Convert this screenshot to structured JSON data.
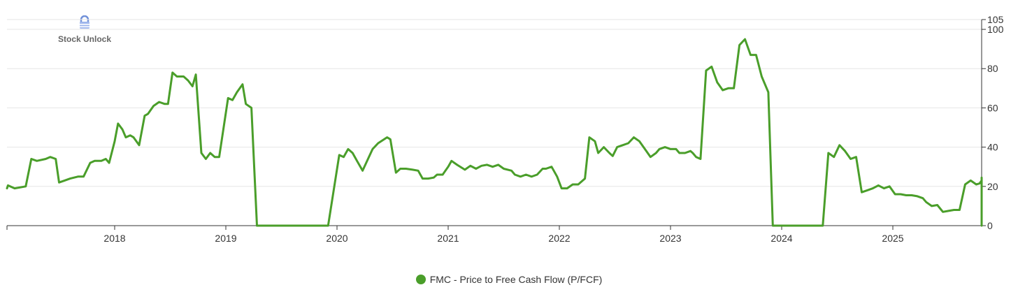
{
  "brand": {
    "name": "Stock Unlock",
    "icon": "lock-icon"
  },
  "colors": {
    "series": "#4a9e2a",
    "grid": "#e6e6e6",
    "axis": "#333333"
  },
  "chart_data": {
    "type": "line",
    "title": "",
    "xlabel": "",
    "ylabel": "",
    "x_ticks": [
      "2018",
      "2019",
      "2020",
      "2021",
      "2022",
      "2023",
      "2024",
      "2025"
    ],
    "y_ticks": [
      0,
      20,
      40,
      60,
      80,
      100,
      105
    ],
    "xlim": [
      2017.0,
      2025.82
    ],
    "ylim": [
      0,
      105
    ],
    "y_axis_side": "right",
    "grid": true,
    "legend_position": "bottom-center",
    "series": [
      {
        "name": "FMC - Price to Free Cash Flow (P/FCF)",
        "color": "#4a9e2a",
        "points": [
          [
            2017.0,
            19
          ],
          [
            2017.04,
            20.5
          ],
          [
            2017.1,
            19
          ],
          [
            2017.2,
            20
          ],
          [
            2017.25,
            34
          ],
          [
            2017.3,
            33
          ],
          [
            2017.38,
            34
          ],
          [
            2017.42,
            35
          ],
          [
            2017.47,
            34
          ],
          [
            2017.5,
            22
          ],
          [
            2017.55,
            23
          ],
          [
            2017.6,
            24
          ],
          [
            2017.67,
            25
          ],
          [
            2017.72,
            25
          ],
          [
            2017.78,
            32
          ],
          [
            2017.82,
            33
          ],
          [
            2017.88,
            33
          ],
          [
            2017.92,
            34
          ],
          [
            2017.95,
            32
          ],
          [
            2018.0,
            43
          ],
          [
            2018.03,
            52
          ],
          [
            2018.07,
            49
          ],
          [
            2018.1,
            45
          ],
          [
            2018.14,
            46
          ],
          [
            2018.17,
            45
          ],
          [
            2018.22,
            41
          ],
          [
            2018.27,
            56
          ],
          [
            2018.3,
            57
          ],
          [
            2018.35,
            61
          ],
          [
            2018.4,
            63
          ],
          [
            2018.45,
            62
          ],
          [
            2018.48,
            62
          ],
          [
            2018.52,
            78
          ],
          [
            2018.56,
            76
          ],
          [
            2018.62,
            76
          ],
          [
            2018.66,
            74
          ],
          [
            2018.7,
            71
          ],
          [
            2018.73,
            77
          ],
          [
            2018.78,
            37
          ],
          [
            2018.82,
            34
          ],
          [
            2018.86,
            37
          ],
          [
            2018.9,
            35
          ],
          [
            2018.94,
            35
          ],
          [
            2019.02,
            65
          ],
          [
            2019.06,
            64
          ],
          [
            2019.1,
            68
          ],
          [
            2019.15,
            72
          ],
          [
            2019.18,
            62
          ],
          [
            2019.23,
            60
          ],
          [
            2019.28,
            0
          ],
          [
            2019.92,
            0
          ],
          [
            2020.02,
            36
          ],
          [
            2020.06,
            35
          ],
          [
            2020.1,
            39
          ],
          [
            2020.14,
            37
          ],
          [
            2020.18,
            33
          ],
          [
            2020.23,
            28
          ],
          [
            2020.32,
            39
          ],
          [
            2020.37,
            42
          ],
          [
            2020.45,
            45
          ],
          [
            2020.48,
            44
          ],
          [
            2020.53,
            27
          ],
          [
            2020.57,
            29
          ],
          [
            2020.62,
            29
          ],
          [
            2020.68,
            28.5
          ],
          [
            2020.73,
            28
          ],
          [
            2020.77,
            24
          ],
          [
            2020.82,
            24
          ],
          [
            2020.87,
            24.5
          ],
          [
            2020.9,
            26
          ],
          [
            2020.95,
            26
          ],
          [
            2021.0,
            30
          ],
          [
            2021.03,
            33
          ],
          [
            2021.08,
            31
          ],
          [
            2021.15,
            28.5
          ],
          [
            2021.2,
            30.5
          ],
          [
            2021.25,
            29
          ],
          [
            2021.3,
            30.5
          ],
          [
            2021.35,
            31
          ],
          [
            2021.4,
            30
          ],
          [
            2021.45,
            31
          ],
          [
            2021.5,
            29
          ],
          [
            2021.57,
            28
          ],
          [
            2021.6,
            26
          ],
          [
            2021.65,
            25
          ],
          [
            2021.7,
            26
          ],
          [
            2021.75,
            25
          ],
          [
            2021.8,
            26
          ],
          [
            2021.85,
            29
          ],
          [
            2021.88,
            29
          ],
          [
            2021.93,
            30
          ],
          [
            2021.98,
            25
          ],
          [
            2022.02,
            19
          ],
          [
            2022.07,
            19
          ],
          [
            2022.12,
            21
          ],
          [
            2022.17,
            21
          ],
          [
            2022.23,
            24
          ],
          [
            2022.27,
            45
          ],
          [
            2022.32,
            43
          ],
          [
            2022.35,
            37
          ],
          [
            2022.4,
            40
          ],
          [
            2022.45,
            37
          ],
          [
            2022.48,
            35.5
          ],
          [
            2022.52,
            40
          ],
          [
            2022.57,
            41
          ],
          [
            2022.62,
            42
          ],
          [
            2022.67,
            45
          ],
          [
            2022.72,
            43
          ],
          [
            2022.77,
            39
          ],
          [
            2022.82,
            35
          ],
          [
            2022.87,
            37
          ],
          [
            2022.9,
            39
          ],
          [
            2022.95,
            40
          ],
          [
            2023.0,
            39
          ],
          [
            2023.05,
            39
          ],
          [
            2023.08,
            37
          ],
          [
            2023.13,
            37
          ],
          [
            2023.18,
            38
          ],
          [
            2023.2,
            37
          ],
          [
            2023.23,
            35
          ],
          [
            2023.27,
            34
          ],
          [
            2023.32,
            79
          ],
          [
            2023.37,
            81
          ],
          [
            2023.42,
            73
          ],
          [
            2023.47,
            69
          ],
          [
            2023.52,
            70
          ],
          [
            2023.57,
            70
          ],
          [
            2023.62,
            92
          ],
          [
            2023.67,
            95
          ],
          [
            2023.72,
            87
          ],
          [
            2023.77,
            87
          ],
          [
            2023.82,
            76
          ],
          [
            2023.88,
            68
          ],
          [
            2023.92,
            0
          ],
          [
            2024.37,
            0
          ],
          [
            2024.42,
            37
          ],
          [
            2024.47,
            35
          ],
          [
            2024.52,
            41
          ],
          [
            2024.57,
            38
          ],
          [
            2024.62,
            34
          ],
          [
            2024.67,
            35
          ],
          [
            2024.72,
            17
          ],
          [
            2024.77,
            18
          ],
          [
            2024.82,
            19
          ],
          [
            2024.87,
            20.5
          ],
          [
            2024.92,
            19
          ],
          [
            2024.97,
            20
          ],
          [
            2025.02,
            16
          ],
          [
            2025.07,
            16
          ],
          [
            2025.12,
            15.5
          ],
          [
            2025.17,
            15.5
          ],
          [
            2025.22,
            15
          ],
          [
            2025.27,
            14
          ],
          [
            2025.3,
            12
          ],
          [
            2025.35,
            10
          ],
          [
            2025.4,
            10.5
          ],
          [
            2025.45,
            7
          ],
          [
            2025.5,
            7.5
          ],
          [
            2025.55,
            8
          ],
          [
            2025.6,
            8
          ],
          [
            2025.65,
            21
          ],
          [
            2025.7,
            23
          ],
          [
            2025.75,
            21
          ],
          [
            2025.78,
            21.5
          ],
          [
            2025.8,
            23
          ],
          [
            2025.83,
            24.5
          ],
          [
            2025.87,
            24
          ],
          [
            2025.92,
            0
          ],
          [
            2026.2,
            0
          ]
        ]
      }
    ]
  }
}
